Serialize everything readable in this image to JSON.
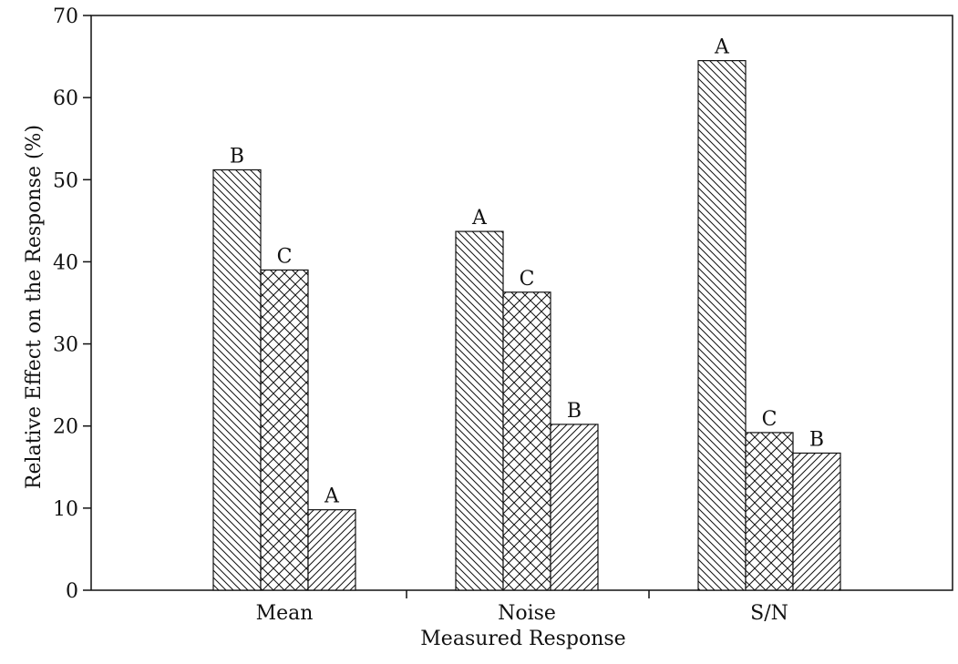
{
  "chart_data": {
    "type": "bar",
    "title": "",
    "xlabel": "Measured Response",
    "ylabel": "Relative Effect on the Response (%)",
    "ylim": [
      0,
      70
    ],
    "yticks": [
      0,
      10,
      20,
      30,
      40,
      50,
      60,
      70
    ],
    "categories": [
      "Mean",
      "Noise",
      "S/N"
    ],
    "grid": false,
    "legend": "none",
    "bars_per_group": [
      [
        {
          "label": "B",
          "value": 51.2,
          "pattern": "back-diagonal"
        },
        {
          "label": "C",
          "value": 39.0,
          "pattern": "cross-hatch"
        },
        {
          "label": "A",
          "value": 9.8,
          "pattern": "forward-diagonal"
        }
      ],
      [
        {
          "label": "A",
          "value": 43.7,
          "pattern": "back-diagonal"
        },
        {
          "label": "C",
          "value": 36.3,
          "pattern": "cross-hatch"
        },
        {
          "label": "B",
          "value": 20.2,
          "pattern": "forward-diagonal"
        }
      ],
      [
        {
          "label": "A",
          "value": 64.5,
          "pattern": "back-diagonal"
        },
        {
          "label": "C",
          "value": 19.2,
          "pattern": "cross-hatch"
        },
        {
          "label": "B",
          "value": 16.7,
          "pattern": "forward-diagonal"
        }
      ]
    ]
  }
}
